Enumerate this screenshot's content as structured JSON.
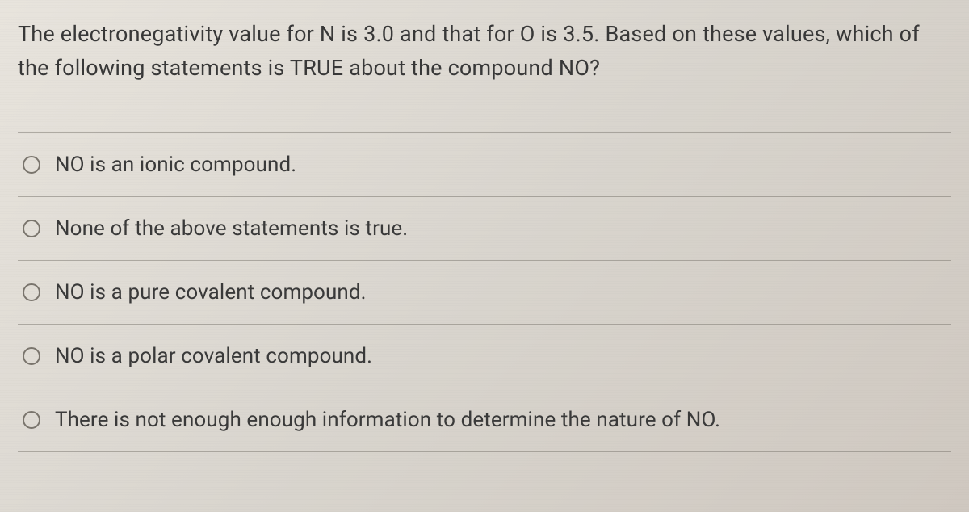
{
  "question": {
    "text": "The electronegativity value for N is 3.0 and that for O is 3.5. Based on these values, which of the following statements is TRUE about the compound NO?"
  },
  "options": [
    {
      "label": "NO is an ionic compound."
    },
    {
      "label": "None of the above statements is true."
    },
    {
      "label": "NO is a pure covalent compound."
    },
    {
      "label": "NO is a polar covalent compound."
    },
    {
      "label": "There is not enough enough information to determine the nature of NO."
    }
  ],
  "colors": {
    "background_start": "#e8e4dd",
    "background_end": "#cfc8c0",
    "text_color": "#3a3a3a",
    "divider_color": "rgba(120,115,108,0.5)",
    "radio_border": "#7a756d"
  },
  "typography": {
    "question_fontsize": 27,
    "option_fontsize": 26,
    "line_height": 1.55
  }
}
